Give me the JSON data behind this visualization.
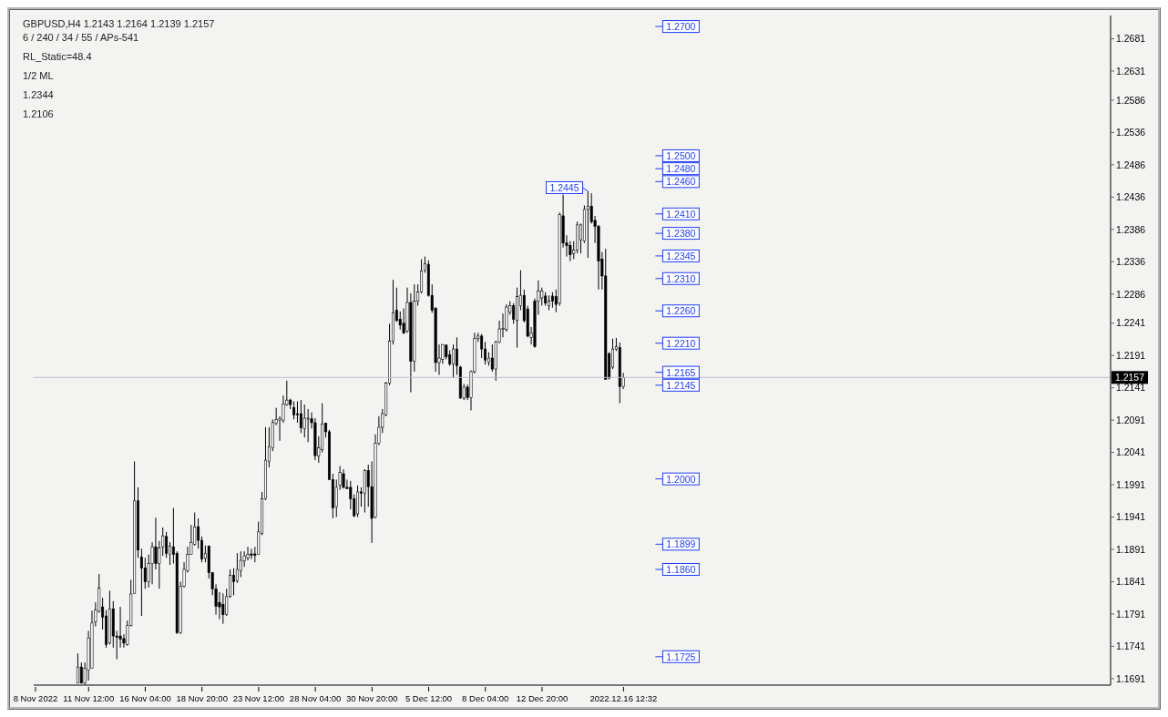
{
  "chart_data": {
    "type": "candlestick",
    "title": "GBPUSD,H4 1.2143 1.2164 1.2139 1.2157",
    "subtitle": "6 / 240 / 34 / 55 / APs-541",
    "categories": [
      "8 Nov 2022",
      null,
      null,
      null,
      null,
      null,
      null,
      null,
      null,
      null,
      null,
      null,
      null,
      null,
      null,
      "11 Nov 12:00",
      null,
      null,
      null,
      null,
      null,
      null,
      null,
      null,
      null,
      null,
      null,
      null,
      null,
      null,
      null,
      "16 Nov 04:00",
      null,
      null,
      null,
      null,
      null,
      null,
      null,
      null,
      null,
      null,
      null,
      null,
      null,
      null,
      null,
      "18 Nov 20:00",
      null,
      null,
      null,
      null,
      null,
      null,
      null,
      null,
      null,
      null,
      null,
      null,
      null,
      null,
      null,
      "23 Nov 12:00",
      null,
      null,
      null,
      null,
      null,
      null,
      null,
      null,
      null,
      null,
      null,
      null,
      null,
      null,
      null,
      "28 Nov 04:00",
      null,
      null,
      null,
      null,
      null,
      null,
      null,
      null,
      null,
      null,
      null,
      null,
      null,
      null,
      null,
      "30 Nov 20:00",
      null,
      null,
      null,
      null,
      null,
      null,
      null,
      null,
      null,
      null,
      null,
      null,
      null,
      null,
      null,
      "5 Dec 12:00",
      null,
      null,
      null,
      null,
      null,
      null,
      null,
      null,
      null,
      null,
      null,
      null,
      null,
      null,
      null,
      "8 Dec 04:00",
      null,
      null,
      null,
      null,
      null,
      null,
      null,
      null,
      null,
      null,
      null,
      null,
      null,
      null,
      null,
      "12 Dec 20:00",
      null,
      null,
      null,
      null,
      null,
      null,
      null,
      null,
      null,
      null,
      null,
      null,
      null,
      null,
      null,
      null,
      null,
      null,
      null,
      null,
      null,
      null,
      "2022.12.16 12:32",
      null,
      null,
      null,
      null,
      null,
      null,
      null,
      null,
      null,
      null,
      null,
      null,
      null,
      null,
      null,
      null,
      null,
      null,
      null,
      null,
      null,
      null,
      null,
      null,
      null,
      null,
      null,
      null,
      null,
      null,
      null,
      null,
      null,
      null,
      null,
      null,
      null,
      null,
      null,
      null,
      null,
      null,
      null,
      null,
      null,
      null,
      null,
      null,
      null,
      null,
      null,
      null,
      null,
      null,
      null,
      null,
      null,
      null,
      null,
      null,
      null,
      null,
      null,
      null,
      null,
      null,
      null,
      null,
      null,
      null,
      null,
      null,
      null,
      null,
      null,
      null,
      null,
      null,
      null,
      null,
      null,
      null,
      null,
      null,
      null,
      null,
      null,
      null,
      null,
      null,
      null,
      null,
      null,
      null,
      null,
      null,
      null,
      null,
      null,
      null,
      null,
      null,
      null,
      null,
      null,
      null,
      null,
      null,
      null,
      null,
      null,
      null,
      null,
      null,
      null,
      null,
      null,
      null,
      null,
      null,
      null,
      null,
      null,
      null,
      null,
      null,
      null,
      null,
      null,
      null,
      null,
      null,
      null,
      null,
      null,
      null,
      null
    ],
    "ohlc": [
      null,
      null,
      null,
      null,
      null,
      null,
      null,
      null,
      null,
      null,
      null,
      null,
      [
        1.1684,
        1.173,
        1.1684,
        1.1709
      ],
      [
        1.1709,
        1.1716,
        1.1684,
        1.1684
      ],
      [
        1.1684,
        1.1716,
        1.1682,
        1.1707
      ],
      [
        1.1704,
        1.1765,
        1.1688,
        1.1754
      ],
      [
        1.1707,
        1.1796,
        1.1707,
        1.1777
      ],
      [
        1.1779,
        1.1809,
        1.1772,
        1.1797
      ],
      [
        1.1795,
        1.1853,
        1.1793,
        1.1831
      ],
      [
        1.1802,
        1.1816,
        1.1767,
        1.1786
      ],
      [
        1.1788,
        1.1797,
        1.1739,
        1.1744
      ],
      [
        1.1746,
        1.1827,
        1.1744,
        1.1799
      ],
      [
        1.1799,
        1.1811,
        1.1739,
        1.1757
      ],
      [
        1.1757,
        1.1765,
        1.1721,
        1.1755
      ],
      [
        1.1757,
        1.1802,
        1.1739,
        1.1752
      ],
      [
        1.1753,
        1.176,
        1.1739,
        1.1746
      ],
      [
        1.1744,
        1.1781,
        1.1742,
        1.1773
      ],
      [
        1.1773,
        1.1844,
        1.1772,
        1.1822
      ],
      [
        1.1823,
        1.2027,
        1.1823,
        1.1966
      ],
      [
        1.1966,
        1.1987,
        1.1878,
        1.189
      ],
      [
        1.1879,
        1.1892,
        1.1788,
        1.1862
      ],
      [
        1.1862,
        1.1878,
        1.183,
        1.1841
      ],
      [
        1.1841,
        1.1883,
        1.1832,
        1.1869
      ],
      [
        1.1869,
        1.1902,
        1.1837,
        1.1895
      ],
      [
        1.1895,
        1.194,
        1.186,
        1.1869
      ],
      [
        1.1869,
        1.1904,
        1.183,
        1.1893
      ],
      [
        1.1895,
        1.1925,
        1.1881,
        1.1912
      ],
      [
        1.1911,
        1.1918,
        1.1878,
        1.1885
      ],
      [
        1.1883,
        1.1902,
        1.1867,
        1.1896
      ],
      [
        1.1895,
        1.1955,
        1.1869,
        1.1883
      ],
      [
        1.1885,
        1.1888,
        1.176,
        1.1762
      ],
      [
        1.1762,
        1.1841,
        1.176,
        1.1834
      ],
      [
        1.1834,
        1.1871,
        1.1832,
        1.186
      ],
      [
        1.1858,
        1.1895,
        1.1855,
        1.1883
      ],
      [
        1.1883,
        1.1929,
        1.1883,
        1.1902
      ],
      [
        1.1899,
        1.1948,
        1.1897,
        1.1926
      ],
      [
        1.1926,
        1.1939,
        1.1892,
        1.1905
      ],
      [
        1.1905,
        1.1911,
        1.1871,
        1.1876
      ],
      [
        1.1877,
        1.1897,
        1.1871,
        1.1885
      ],
      [
        1.1896,
        1.1897,
        1.1846,
        1.1855
      ],
      [
        1.1855,
        1.1855,
        1.182,
        1.183
      ],
      [
        1.183,
        1.1837,
        1.179,
        1.1803
      ],
      [
        1.1809,
        1.1825,
        1.1783,
        1.1802
      ],
      [
        1.1806,
        1.1823,
        1.1776,
        1.179
      ],
      [
        1.179,
        1.183,
        1.1788,
        1.1818
      ],
      [
        1.1818,
        1.186,
        1.1816,
        1.1851
      ],
      [
        1.1851,
        1.1862,
        1.182,
        1.1841
      ],
      [
        1.1842,
        1.1885,
        1.1839,
        1.186
      ],
      [
        1.1858,
        1.1888,
        1.1848,
        1.1874
      ],
      [
        1.1873,
        1.1888,
        1.1864,
        1.1881
      ],
      [
        1.1878,
        1.1895,
        1.1874,
        1.1883
      ],
      [
        1.1884,
        1.1892,
        1.1876,
        1.1882
      ],
      [
        1.1884,
        1.1895,
        1.1871,
        1.1882
      ],
      [
        1.1883,
        1.1934,
        1.1883,
        1.1918
      ],
      [
        1.1916,
        1.198,
        1.1913,
        1.1969
      ],
      [
        1.1969,
        1.208,
        1.1967,
        1.2029
      ],
      [
        1.2027,
        1.208,
        1.2018,
        1.205
      ],
      [
        1.2048,
        1.2092,
        1.2043,
        1.2087
      ],
      [
        1.2086,
        1.211,
        1.2083,
        1.2092
      ],
      [
        1.2091,
        1.2097,
        1.2059,
        1.2093
      ],
      [
        1.2091,
        1.2129,
        1.2087,
        1.2116
      ],
      [
        1.2115,
        1.2152,
        1.2113,
        1.2122
      ],
      [
        1.2122,
        1.2124,
        1.2108,
        1.2115
      ],
      [
        1.211,
        1.212,
        1.2092,
        1.2099
      ],
      [
        1.2101,
        1.212,
        1.2087,
        1.2099
      ],
      [
        1.2101,
        1.2122,
        1.2071,
        1.2079
      ],
      [
        1.2078,
        1.2115,
        1.2064,
        1.2094
      ],
      [
        1.2093,
        1.2108,
        1.2057,
        1.2094
      ],
      [
        1.2093,
        1.2103,
        1.2078,
        1.2087
      ],
      [
        1.2087,
        1.2094,
        1.2029,
        1.2036
      ],
      [
        1.2036,
        1.2066,
        1.2025,
        1.2048
      ],
      [
        1.2045,
        1.2117,
        1.2041,
        1.2085
      ],
      [
        1.2086,
        1.2087,
        1.2064,
        1.2073
      ],
      [
        1.2073,
        1.2076,
        1.1999,
        1.1999
      ],
      [
        1.1999,
        1.2008,
        1.1939,
        1.1955
      ],
      [
        1.1957,
        1.1999,
        1.1941,
        1.1987
      ],
      [
        1.199,
        1.202,
        1.1983,
        1.201
      ],
      [
        1.2008,
        1.2015,
        1.1985,
        1.1987
      ],
      [
        1.1987,
        1.1999,
        1.1985,
        1.1985
      ],
      [
        1.1987,
        1.1997,
        1.1953,
        1.1969
      ],
      [
        1.1969,
        1.1976,
        1.1941,
        1.1943
      ],
      [
        1.1946,
        1.199,
        1.1941,
        1.198
      ],
      [
        1.198,
        1.1987,
        1.1957,
        1.1978
      ],
      [
        1.1978,
        1.2015,
        1.1948,
        1.2013
      ],
      [
        1.2013,
        1.2022,
        1.1957,
        1.1988
      ],
      [
        1.1988,
        1.2027,
        1.1901,
        1.1939
      ],
      [
        1.1941,
        1.2069,
        1.1939,
        1.2055
      ],
      [
        1.2055,
        1.2097,
        1.2052,
        1.208
      ],
      [
        1.208,
        1.2108,
        1.2071,
        1.2101
      ],
      [
        1.2099,
        1.215,
        1.2097,
        1.2148
      ],
      [
        1.2148,
        1.224,
        1.2145,
        1.2213
      ],
      [
        1.2213,
        1.2308,
        1.2208,
        1.2257
      ],
      [
        1.2261,
        1.2296,
        1.2243,
        1.2245
      ],
      [
        1.2247,
        1.2259,
        1.2231,
        1.2238
      ],
      [
        1.2241,
        1.2264,
        1.2224,
        1.2226
      ],
      [
        1.2229,
        1.2296,
        1.2226,
        1.2273
      ],
      [
        1.2273,
        1.2287,
        1.2134,
        1.2182
      ],
      [
        1.2182,
        1.2301,
        1.2166,
        1.2275
      ],
      [
        1.2275,
        1.2301,
        1.2268,
        1.2289
      ],
      [
        1.2289,
        1.234,
        1.2287,
        1.2322
      ],
      [
        1.2323,
        1.2344,
        1.2319,
        1.2333
      ],
      [
        1.2332,
        1.2338,
        1.2282,
        1.2284
      ],
      [
        1.2284,
        1.2301,
        1.2257,
        1.2261
      ],
      [
        1.2264,
        1.2266,
        1.2166,
        1.218
      ],
      [
        1.218,
        1.2208,
        1.2161,
        1.2187
      ],
      [
        1.2185,
        1.2208,
        1.2178,
        1.2208
      ],
      [
        1.2207,
        1.2208,
        1.2185,
        1.2189
      ],
      [
        1.2192,
        1.2199,
        1.2175,
        1.2178
      ],
      [
        1.2178,
        1.2208,
        1.2157,
        1.2201
      ],
      [
        1.2201,
        1.2219,
        1.2161,
        1.2175
      ],
      [
        1.2173,
        1.2175,
        1.2124,
        1.2125
      ],
      [
        1.2125,
        1.2147,
        1.2122,
        1.2142
      ],
      [
        1.2142,
        1.2146,
        1.2122,
        1.2126
      ],
      [
        1.2126,
        1.2168,
        1.2106,
        1.2166
      ],
      [
        1.2166,
        1.2226,
        1.2163,
        1.2217
      ],
      [
        1.2217,
        1.2226,
        1.2212,
        1.2221
      ],
      [
        1.2221,
        1.2224,
        1.2187,
        1.2201
      ],
      [
        1.2201,
        1.2212,
        1.2177,
        1.2184
      ],
      [
        1.2181,
        1.2196,
        1.2175,
        1.2187
      ],
      [
        1.2187,
        1.2208,
        1.2166,
        1.217
      ],
      [
        1.217,
        1.2214,
        1.2152,
        1.2212
      ],
      [
        1.2212,
        1.2245,
        1.221,
        1.2232
      ],
      [
        1.2232,
        1.2256,
        1.2219,
        1.2233
      ],
      [
        1.2231,
        1.227,
        1.2228,
        1.2266
      ],
      [
        1.2258,
        1.2275,
        1.2254,
        1.2268
      ],
      [
        1.2268,
        1.2272,
        1.224,
        1.2247
      ],
      [
        1.2245,
        1.2296,
        1.2203,
        1.2282
      ],
      [
        1.2268,
        1.2323,
        1.2261,
        1.2284
      ],
      [
        1.2284,
        1.2293,
        1.2242,
        1.2245
      ],
      [
        1.2263,
        1.2268,
        1.2219,
        1.2221
      ],
      [
        1.2219,
        1.2235,
        1.2208,
        1.2226
      ],
      [
        1.2275,
        1.2279,
        1.2203,
        1.2205
      ],
      [
        1.2275,
        1.2307,
        1.2254,
        1.2291
      ],
      [
        1.228,
        1.2296,
        1.2268,
        1.2291
      ],
      [
        1.2283,
        1.2289,
        1.2268,
        1.2272
      ],
      [
        1.2268,
        1.2284,
        1.2261,
        1.2275
      ],
      [
        1.2283,
        1.2289,
        1.2265,
        1.2275
      ],
      [
        1.2282,
        1.2293,
        1.2258,
        1.227
      ],
      [
        1.2272,
        1.2412,
        1.2268,
        1.2409
      ],
      [
        1.2407,
        1.244,
        1.2358,
        1.2365
      ],
      [
        1.2365,
        1.2377,
        1.2344,
        1.2361
      ],
      [
        1.2361,
        1.2368,
        1.2337,
        1.2347
      ],
      [
        1.2349,
        1.2368,
        1.234,
        1.2354
      ],
      [
        1.2354,
        1.2398,
        1.2349,
        1.2393
      ],
      [
        1.237,
        1.2395,
        1.2349,
        1.2393
      ],
      [
        1.2368,
        1.2423,
        1.2365,
        1.2417
      ],
      [
        1.2417,
        1.2445,
        1.2342,
        1.2422
      ],
      [
        1.2422,
        1.2442,
        1.2395,
        1.2398
      ],
      [
        1.24,
        1.2407,
        1.2365,
        1.2391
      ],
      [
        1.2391,
        1.2393,
        1.2293,
        1.2337
      ],
      [
        1.234,
        1.2351,
        1.2293,
        1.2314
      ],
      [
        1.2314,
        1.2356,
        1.2154,
        1.2154
      ],
      [
        1.2194,
        1.2196,
        1.2154,
        1.2156
      ],
      [
        1.2173,
        1.2217,
        1.217,
        1.2201
      ],
      [
        1.2201,
        1.2218,
        1.2198,
        1.2205
      ],
      [
        1.2203,
        1.2211,
        1.2117,
        1.2143
      ],
      [
        1.2143,
        1.2164,
        1.2139,
        1.2157
      ],
      null,
      null,
      null,
      null,
      null,
      null,
      null,
      null,
      null,
      null,
      null,
      null,
      null,
      null,
      null,
      null,
      null,
      null,
      null,
      null,
      null,
      null,
      null,
      null,
      null,
      null,
      null,
      null,
      null,
      null,
      null,
      null,
      null,
      null,
      null,
      null,
      null,
      null,
      null,
      null,
      null,
      null,
      null,
      null,
      null,
      null,
      null,
      null,
      null,
      null,
      null,
      null,
      null,
      null,
      null,
      null,
      null,
      null,
      null,
      null,
      null,
      null,
      null,
      null,
      null,
      null,
      null,
      null,
      null,
      null,
      null,
      null,
      null,
      null,
      null,
      null,
      null,
      null,
      null,
      null,
      null,
      null,
      null,
      null,
      null,
      null,
      null,
      null,
      null,
      null,
      null,
      null,
      null,
      null,
      null,
      null,
      null,
      null,
      null,
      null,
      null,
      null,
      null,
      null,
      null,
      null,
      null,
      null,
      null,
      null,
      null,
      null,
      null,
      null,
      null,
      null,
      null,
      null,
      null,
      null,
      null,
      null,
      null,
      null,
      null,
      null,
      null,
      null,
      null,
      null,
      null,
      null,
      null,
      null,
      null,
      null,
      null
    ],
    "ylim": [
      1.1681,
      1.2717
    ],
    "yticks": [
      1.2681,
      1.2631,
      1.2586,
      1.2536,
      1.2486,
      1.2436,
      1.2386,
      1.2336,
      1.2286,
      1.2241,
      1.2191,
      1.2141,
      1.2091,
      1.2041,
      1.1991,
      1.1941,
      1.1891,
      1.1841,
      1.1791,
      1.1741,
      1.1691
    ],
    "ref_lines": [
      {
        "axis": "y",
        "value": 1.2157,
        "label": "1.2157"
      }
    ],
    "annotations": [
      "RL_Static=48.4",
      "1/2 ML",
      {
        "text": "1.2700",
        "y": 1.27
      },
      {
        "text": "1.2500",
        "y": 1.25
      },
      {
        "text": "1.2480",
        "y": 1.248
      },
      {
        "text": "1.2460",
        "y": 1.246
      },
      {
        "text": "1.2445",
        "y": 1.2445
      },
      {
        "text": "1.2410",
        "y": 1.241
      },
      {
        "text": "1.2380",
        "y": 1.238
      },
      "1.2344",
      {
        "text": "1.2345",
        "y": 1.2345
      },
      {
        "text": "1.2310",
        "y": 1.231
      },
      {
        "text": "1.2260",
        "y": 1.226
      },
      {
        "text": "1.2210",
        "y": 1.221
      },
      {
        "text": "1.2165",
        "y": 1.2165
      },
      {
        "text": "1.2145",
        "y": 1.2145
      },
      "1.2106",
      {
        "text": "1.2000",
        "y": 1.2
      },
      {
        "text": "1.1899",
        "y": 1.1899
      },
      {
        "text": "1.1860",
        "y": 1.186
      },
      {
        "text": "1.1725",
        "y": 1.1725
      }
    ]
  }
}
